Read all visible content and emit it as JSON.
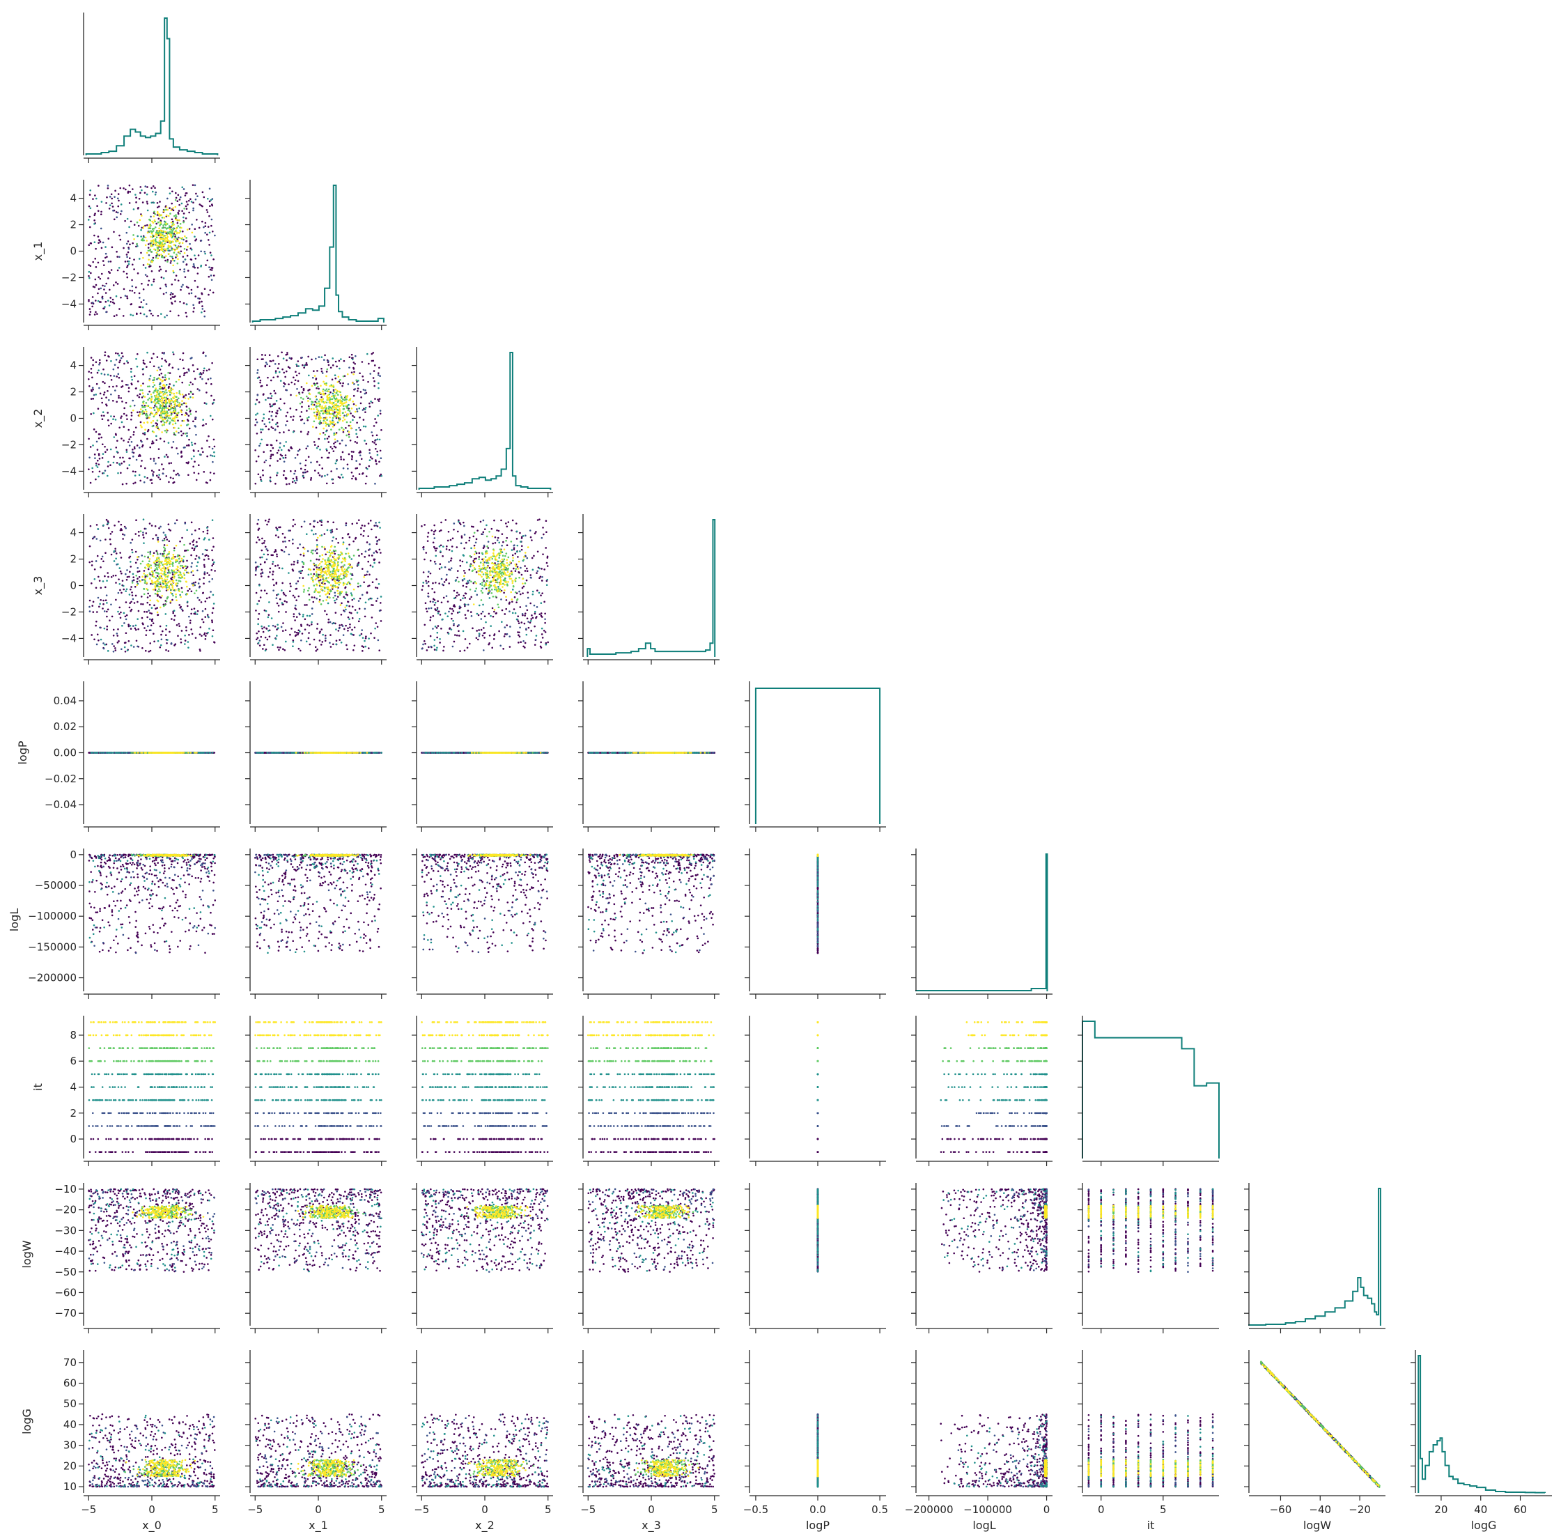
{
  "chart_data": {
    "type": "corner-pairplot",
    "variables": [
      {
        "key": "x_0",
        "label": "x_0",
        "range": [
          -5.4,
          5.4
        ],
        "ticks": [
          -5,
          0,
          5
        ],
        "tick_labels": [
          "−5",
          "0",
          "5"
        ]
      },
      {
        "key": "x_1",
        "label": "x_1",
        "range": [
          -5.4,
          5.4
        ],
        "ticks": [
          -4,
          -2,
          0,
          2,
          4
        ],
        "tick_labels": [
          "−4",
          "−2",
          "0",
          "2",
          "4"
        ],
        "x_ticks": [
          -5,
          0,
          5
        ],
        "x_tick_labels": [
          "−5",
          "0",
          "5"
        ]
      },
      {
        "key": "x_2",
        "label": "x_2",
        "range": [
          -5.4,
          5.4
        ],
        "ticks": [
          -4,
          -2,
          0,
          2,
          4
        ],
        "tick_labels": [
          "−4",
          "−2",
          "0",
          "2",
          "4"
        ],
        "x_ticks": [
          -5,
          0,
          5
        ],
        "x_tick_labels": [
          "−5",
          "0",
          "5"
        ]
      },
      {
        "key": "x_3",
        "label": "x_3",
        "range": [
          -5.4,
          5.4
        ],
        "ticks": [
          -4,
          -2,
          0,
          2,
          4
        ],
        "tick_labels": [
          "−4",
          "−2",
          "0",
          "2",
          "4"
        ],
        "x_ticks": [
          -5,
          0,
          5
        ],
        "x_tick_labels": [
          "−5",
          "0",
          "5"
        ]
      },
      {
        "key": "logP",
        "label": "logP",
        "range": [
          -0.055,
          0.055
        ],
        "ticks": [
          -0.04,
          -0.02,
          0,
          0.02,
          0.04
        ],
        "tick_labels": [
          "−0.04",
          "−0.02",
          "0.00",
          "0.02",
          "0.04"
        ],
        "x_range": [
          -0.55,
          0.55
        ],
        "x_ticks": [
          -0.5,
          0,
          0.5
        ],
        "x_tick_labels": [
          "−0.5",
          "0.0",
          "0.5"
        ]
      },
      {
        "key": "logL",
        "label": "logL",
        "range": [
          -222000,
          10000
        ],
        "ticks": [
          -200000,
          -150000,
          -100000,
          -50000,
          0
        ],
        "tick_labels": [
          "−200000",
          "−150000",
          "−100000",
          "−50000",
          "0"
        ],
        "x_ticks": [
          -200000,
          -100000,
          0
        ],
        "x_tick_labels": [
          "−200000",
          "−100000",
          "0"
        ]
      },
      {
        "key": "it",
        "label": "it",
        "range": [
          -1.5,
          9.5
        ],
        "ticks": [
          0,
          2,
          4,
          6,
          8
        ],
        "tick_labels": [
          "0",
          "2",
          "4",
          "6",
          "8"
        ],
        "x_ticks": [
          0,
          5
        ],
        "x_tick_labels": [
          "0",
          "5"
        ]
      },
      {
        "key": "logW",
        "label": "logW",
        "range": [
          -76,
          -7
        ],
        "ticks": [
          -70,
          -60,
          -50,
          -40,
          -30,
          -20,
          -10
        ],
        "tick_labels": [
          "−70",
          "−60",
          "−50",
          "−40",
          "−30",
          "−20",
          "−10"
        ],
        "x_ticks": [
          -60,
          -40,
          -20
        ],
        "x_tick_labels": [
          "−60",
          "−40",
          "−20"
        ]
      },
      {
        "key": "logG",
        "label": "logG",
        "range": [
          7,
          76
        ],
        "ticks": [
          10,
          20,
          30,
          40,
          50,
          60,
          70
        ],
        "tick_labels": [
          "10",
          "20",
          "30",
          "40",
          "50",
          "60",
          "70"
        ],
        "x_ticks": [
          20,
          40,
          60
        ],
        "x_tick_labels": [
          "20",
          "40",
          "60"
        ]
      }
    ],
    "diagonal": "step-histogram",
    "lower_triangle": "scatter",
    "upper_triangle": "empty",
    "histogram_color": "#0f7f7a",
    "scatter_colormap": [
      "#440154",
      "#3b528b",
      "#21918c",
      "#5ec962",
      "#fde725"
    ],
    "histograms": {
      "x_0": {
        "bins_centers": [
          -4.9,
          -4.3,
          -3.7,
          -3.1,
          -2.5,
          -1.9,
          -1.5,
          -1.1,
          -0.7,
          -0.3,
          0.1,
          0.5,
          0.9,
          1.1,
          1.3,
          1.5,
          1.9,
          2.5,
          3.1,
          3.7,
          4.3,
          4.9
        ],
        "counts": [
          0.01,
          0.01,
          0.02,
          0.03,
          0.07,
          0.14,
          0.19,
          0.17,
          0.14,
          0.13,
          0.14,
          0.16,
          0.25,
          1.0,
          0.85,
          0.12,
          0.06,
          0.04,
          0.03,
          0.02,
          0.01,
          0.01
        ]
      },
      "x_1": {
        "bins_centers": [
          -4.9,
          -4.3,
          -3.7,
          -3.1,
          -2.5,
          -1.9,
          -1.3,
          -0.7,
          -0.2,
          0.3,
          0.7,
          1.1,
          1.3,
          1.5,
          1.7,
          2.1,
          2.7,
          3.3,
          3.9,
          4.5,
          4.95
        ],
        "counts": [
          0.01,
          0.02,
          0.02,
          0.03,
          0.04,
          0.05,
          0.07,
          0.1,
          0.09,
          0.12,
          0.25,
          0.55,
          1.0,
          0.2,
          0.08,
          0.04,
          0.02,
          0.01,
          0.01,
          0.01,
          0.03
        ]
      },
      "x_2": {
        "bins_centers": [
          -4.9,
          -4.3,
          -3.7,
          -3.1,
          -2.5,
          -1.9,
          -1.3,
          -0.7,
          -0.2,
          0.3,
          0.7,
          1.1,
          1.5,
          1.9,
          2.1,
          2.3,
          2.6,
          3.1,
          3.7,
          4.3,
          4.9
        ],
        "counts": [
          0.01,
          0.01,
          0.02,
          0.02,
          0.03,
          0.04,
          0.05,
          0.08,
          0.09,
          0.07,
          0.08,
          0.1,
          0.15,
          0.3,
          1.0,
          0.1,
          0.03,
          0.02,
          0.01,
          0.01,
          0.01
        ]
      },
      "x_3": {
        "bins_centers": [
          -4.95,
          -4.75,
          -4.3,
          -3.7,
          -3.1,
          -2.5,
          -1.9,
          -1.3,
          -0.7,
          -0.2,
          0.1,
          0.5,
          1.1,
          1.7,
          2.3,
          2.9,
          3.5,
          4.1,
          4.5,
          4.8,
          4.95
        ],
        "counts": [
          0.06,
          0.02,
          0.02,
          0.02,
          0.02,
          0.03,
          0.03,
          0.04,
          0.06,
          0.1,
          0.06,
          0.04,
          0.04,
          0.04,
          0.04,
          0.04,
          0.04,
          0.04,
          0.05,
          0.1,
          1.0
        ]
      },
      "logP": {
        "bins_centers": [
          0
        ],
        "counts": [
          1.0
        ],
        "bin_edges_span": [
          -0.5,
          0.5
        ]
      },
      "logL": {
        "bins_centers": [
          -200000,
          -150000,
          -100000,
          -50000,
          -2000,
          0
        ],
        "counts": [
          0.005,
          0.005,
          0.005,
          0.005,
          0.02,
          1.0
        ]
      },
      "it": {
        "bins_centers": [
          -1,
          0,
          1,
          2,
          3,
          4,
          5,
          6,
          7,
          8,
          9
        ],
        "counts": [
          1.0,
          0.88,
          0.88,
          0.88,
          0.88,
          0.88,
          0.88,
          0.88,
          0.8,
          0.53,
          0.55
        ]
      },
      "logW": {
        "bins_centers": [
          -75,
          -70,
          -65,
          -60,
          -55,
          -50,
          -45,
          -40,
          -35,
          -30,
          -25,
          -22,
          -20,
          -19,
          -17,
          -15,
          -13,
          -12,
          -11,
          -10
        ],
        "counts": [
          0.005,
          0.005,
          0.01,
          0.01,
          0.02,
          0.03,
          0.05,
          0.07,
          0.1,
          0.13,
          0.18,
          0.25,
          0.35,
          0.28,
          0.22,
          0.2,
          0.16,
          0.1,
          0.08,
          1.0
        ]
      },
      "logG": {
        "bins_centers": [
          9,
          10,
          11,
          13,
          15,
          17,
          19,
          20,
          21,
          23,
          25,
          27,
          30,
          33,
          36,
          40,
          45,
          50,
          55,
          60,
          65,
          70
        ],
        "counts": [
          1.0,
          0.25,
          0.1,
          0.2,
          0.3,
          0.35,
          0.38,
          0.4,
          0.3,
          0.2,
          0.12,
          0.1,
          0.07,
          0.06,
          0.05,
          0.04,
          0.02,
          0.01,
          0.005,
          0.005,
          0.003,
          0.002
        ]
      }
    }
  }
}
